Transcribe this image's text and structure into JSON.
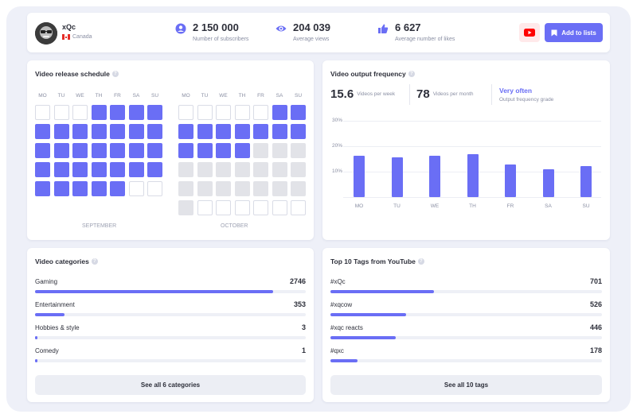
{
  "channel": {
    "name": "xQc",
    "country": "Canada"
  },
  "stats": [
    {
      "value": "2 150 000",
      "label": "Number of subscribers",
      "icon": "user-circle-icon"
    },
    {
      "value": "204 039",
      "label": "Average views",
      "icon": "eye-icon"
    },
    {
      "value": "6 627",
      "label": "Average number of likes",
      "icon": "thumbs-up-icon"
    }
  ],
  "actions": {
    "add_to_lists": "Add to lists"
  },
  "colors": {
    "accent": "#6a6ef5",
    "youtube": "#ff0000",
    "inactive": "#e2e3e8"
  },
  "schedule": {
    "title": "Video release schedule",
    "weekdays": [
      "MO",
      "TU",
      "WE",
      "TH",
      "FR",
      "SA",
      "SU"
    ],
    "legend": "on = video released, off = no video, na = outside month",
    "months": [
      {
        "label": "SEPTEMBER",
        "grid": [
          [
            "off",
            "off",
            "off",
            "on",
            "on",
            "on",
            "on"
          ],
          [
            "on",
            "on",
            "on",
            "on",
            "on",
            "on",
            "on"
          ],
          [
            "on",
            "on",
            "on",
            "on",
            "on",
            "on",
            "on"
          ],
          [
            "on",
            "on",
            "on",
            "on",
            "on",
            "on",
            "on"
          ],
          [
            "on",
            "on",
            "on",
            "on",
            "on",
            "off",
            "off"
          ]
        ]
      },
      {
        "label": "OCTOBER",
        "grid": [
          [
            "off",
            "off",
            "off",
            "off",
            "off",
            "on",
            "on"
          ],
          [
            "on",
            "on",
            "on",
            "on",
            "on",
            "on",
            "on"
          ],
          [
            "on",
            "on",
            "on",
            "on",
            "na",
            "na",
            "na"
          ],
          [
            "na",
            "na",
            "na",
            "na",
            "na",
            "na",
            "na"
          ],
          [
            "na",
            "na",
            "na",
            "na",
            "na",
            "na",
            "na"
          ],
          [
            "na",
            "off",
            "off",
            "off",
            "off",
            "off",
            "off"
          ]
        ]
      }
    ]
  },
  "frequency": {
    "title": "Video output frequency",
    "per_week_value": "15.6",
    "per_week_label": "Videos per week",
    "per_month_value": "78",
    "per_month_label": "Videos per month",
    "grade_value": "Very often",
    "grade_label": "Output frequency grade"
  },
  "chart_data": {
    "type": "bar",
    "categories": [
      "MO",
      "TU",
      "WE",
      "TH",
      "FR",
      "SA",
      "SU"
    ],
    "values": [
      16.3,
      15.5,
      16.3,
      16.8,
      12.8,
      10.8,
      12.3
    ],
    "yticks": [
      "30%",
      "20%",
      "10%"
    ],
    "ytick_values": [
      30,
      20,
      10
    ],
    "ylim": [
      0,
      30
    ],
    "grid": true
  },
  "categories": {
    "title": "Video categories",
    "items": [
      {
        "label": "Gaming",
        "value": "2746",
        "fraction": 0.88
      },
      {
        "label": "Entertainment",
        "value": "353",
        "fraction": 0.11
      },
      {
        "label": "Hobbies & style",
        "value": "3",
        "fraction": 0.01
      },
      {
        "label": "Comedy",
        "value": "1",
        "fraction": 0.01
      }
    ],
    "see_all": "See all 6 categories"
  },
  "tags": {
    "title": "Top 10 Tags from YouTube",
    "items": [
      {
        "label": "#xQc",
        "value": "701",
        "fraction": 0.38
      },
      {
        "label": "#xqcow",
        "value": "526",
        "fraction": 0.28
      },
      {
        "label": "#xqc reacts",
        "value": "446",
        "fraction": 0.24
      },
      {
        "label": "#qxc",
        "value": "178",
        "fraction": 0.1
      }
    ],
    "see_all": "See all 10 tags"
  }
}
